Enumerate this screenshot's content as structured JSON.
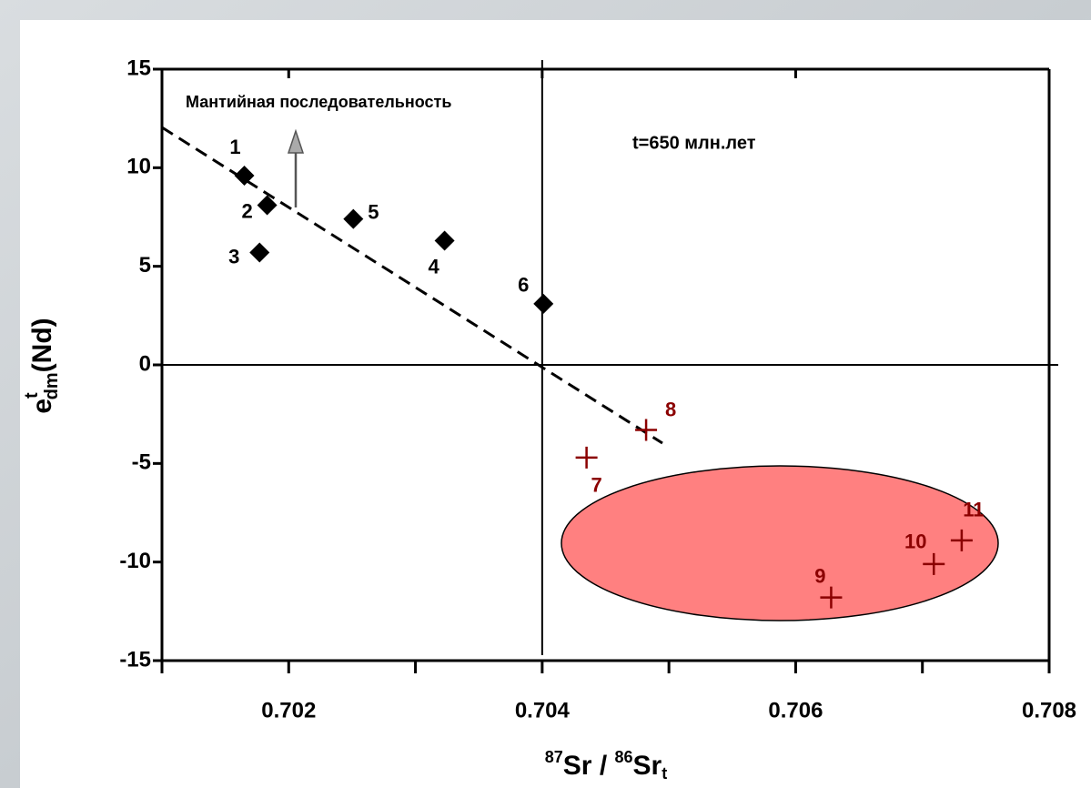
{
  "chart_data": {
    "type": "scatter",
    "annotations": [
      "Мантийная последовательность",
      "t=650 млн.лет"
    ],
    "ylabel": {
      "base": "e",
      "sup": "t",
      "sub": "dm",
      "rest": "(Nd)"
    },
    "xlabel": {
      "sup1": "87",
      "part1": "Sr / ",
      "sup2": "86",
      "part2": "Sr",
      "sub": "t"
    },
    "xlim": [
      0.701,
      0.708
    ],
    "ylim": [
      -15,
      15
    ],
    "xticks": [
      0.702,
      0.704,
      0.706,
      0.708
    ],
    "x_minor_ticks": [
      0.701,
      0.703,
      0.705,
      0.707
    ],
    "yticks": [
      -15,
      -10,
      -5,
      0,
      5,
      10,
      15
    ],
    "vlines": [
      0.704
    ],
    "hlines": [
      0
    ],
    "series": [
      {
        "marker": "diamond",
        "color": "#000000",
        "x": [
          0.70165,
          0.70183,
          0.70177,
          0.70323,
          0.70251,
          0.70401
        ],
        "y": [
          9.6,
          8.1,
          5.7,
          6.3,
          7.4,
          3.1
        ],
        "labels": [
          "1",
          "2",
          "3",
          "4",
          "5",
          "6"
        ]
      },
      {
        "marker": "cross",
        "color": "#8b0000",
        "x": [
          0.70435,
          0.70482,
          0.70628,
          0.70709,
          0.70731
        ],
        "y": [
          -4.7,
          -3.3,
          -11.8,
          -10.1,
          -8.9
        ],
        "labels": [
          "7",
          "8",
          "9",
          "10",
          "11"
        ]
      }
    ]
  }
}
